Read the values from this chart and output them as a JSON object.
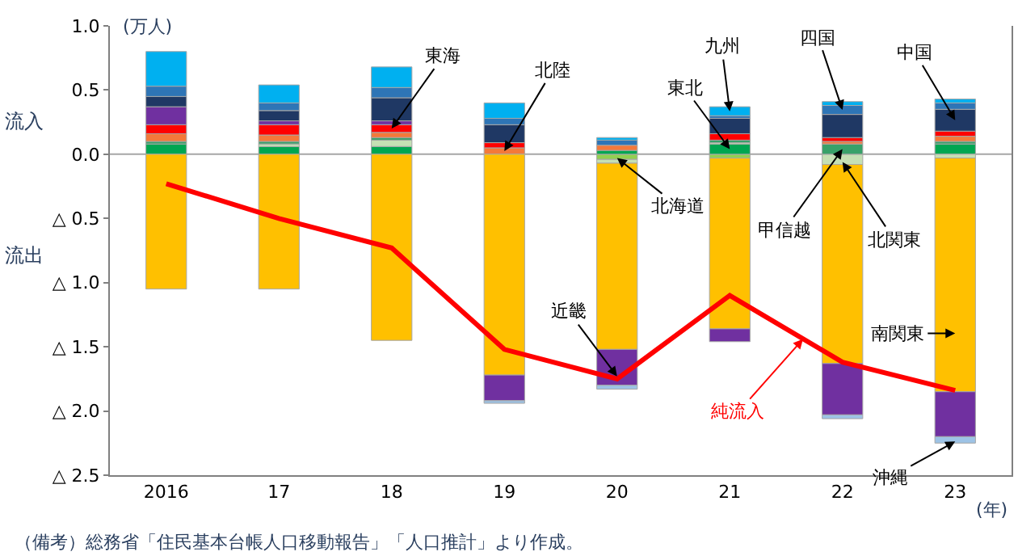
{
  "chart_data": {
    "type": "bar",
    "stacked": true,
    "ylabel": "(万人)",
    "xlabel": "(年)",
    "categories": [
      "2016",
      "17",
      "18",
      "19",
      "20",
      "21",
      "22",
      "23"
    ],
    "series": [
      {
        "name": "北海道",
        "color": "#92d050",
        "values": [
          null,
          null,
          null,
          null,
          -0.04,
          -0.03,
          null,
          null
        ]
      },
      {
        "name": "東北",
        "color": "#00a651",
        "values": [
          0.08,
          0.06,
          0.06,
          null,
          0.03,
          0.08,
          null,
          0.08
        ]
      },
      {
        "name": "北関東",
        "color": "#c5e0b4",
        "values": [
          null,
          0.02,
          0.05,
          null,
          -0.03,
          0.01,
          -0.08,
          -0.03
        ]
      },
      {
        "name": "甲信越",
        "color": "#38a169",
        "values": [
          0.02,
          0.02,
          0.02,
          null,
          null,
          0.02,
          0.08,
          0.02
        ]
      },
      {
        "name": "北陸",
        "color": "#f4793a",
        "values": [
          0.06,
          0.05,
          0.04,
          0.05,
          0.04,
          null,
          0.02,
          0.04
        ]
      },
      {
        "name": "東海",
        "color": "#ff0000",
        "values": [
          0.07,
          0.08,
          0.06,
          0.04,
          null,
          0.05,
          0.03,
          0.04
        ]
      },
      {
        "name": "南関東",
        "color": "#ffc000",
        "values": [
          -1.05,
          -1.05,
          -1.45,
          -1.72,
          -1.45,
          -1.33,
          -1.55,
          -1.82
        ]
      },
      {
        "name": "近畿",
        "color": "#7030a0",
        "values": [
          0.14,
          0.03,
          0.03,
          -0.2,
          -0.28,
          -0.1,
          -0.4,
          -0.35
        ]
      },
      {
        "name": "中国",
        "color": "#1f3864",
        "values": [
          0.08,
          0.08,
          0.18,
          0.14,
          null,
          0.12,
          0.18,
          0.17
        ]
      },
      {
        "name": "四国",
        "color": "#2e75b6",
        "values": [
          0.08,
          0.06,
          0.08,
          0.05,
          0.04,
          0.02,
          0.07,
          0.05
        ]
      },
      {
        "name": "九州",
        "color": "#00b0f0",
        "values": [
          0.27,
          0.14,
          0.16,
          0.12,
          0.02,
          0.07,
          0.03,
          0.03
        ]
      },
      {
        "name": "沖縄",
        "color": "#9dc3e6",
        "values": [
          null,
          null,
          null,
          -0.02,
          -0.03,
          null,
          -0.03,
          -0.05
        ]
      },
      {
        "name": "純流入",
        "type": "line",
        "color": "#ff0000",
        "values": [
          -0.23,
          -0.5,
          -0.73,
          -1.52,
          -1.75,
          -1.1,
          -1.62,
          -1.84
        ]
      }
    ],
    "ylim": [
      -2.5,
      1.0
    ],
    "yticks": [
      {
        "value": 1.0,
        "label": "1.0"
      },
      {
        "value": 0.5,
        "label": "0.5"
      },
      {
        "value": 0.0,
        "label": "0.0"
      },
      {
        "value": -0.5,
        "label": "△ 0.5"
      },
      {
        "value": -1.0,
        "label": "△ 1.0"
      },
      {
        "value": -1.5,
        "label": "△ 1.5"
      },
      {
        "value": -2.0,
        "label": "△ 2.0"
      },
      {
        "value": -2.5,
        "label": "△ 2.5"
      }
    ],
    "ref_lines": [
      {
        "axis": "y",
        "value": 0,
        "color": "#a6a6a6"
      }
    ],
    "grid": false,
    "marker": "none",
    "line_style": "solid",
    "annotations": [
      "流入",
      "流出",
      "（備考）総務省「住民基本台帳人口移動報告」「人口推計」より作成。"
    ]
  }
}
